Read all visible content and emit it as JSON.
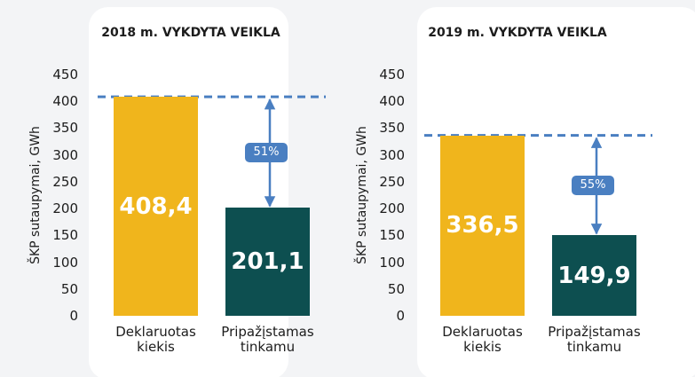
{
  "charts": [
    {
      "chart_data": {
        "type": "bar",
        "title": "2018 m. VYKDYTA VEIKLA",
        "y_label": "ŠKP sutaupymai, GWh",
        "categories": [
          "Deklaruotas kiekis",
          "Pripažįstamas tinkamu"
        ],
        "values": [
          408.4,
          201.1
        ],
        "value_labels": [
          "408,4",
          "201,1"
        ],
        "colors": [
          "#f0b51c",
          "#0d4f50"
        ],
        "annotation": "51%",
        "ylim": [
          0,
          450
        ],
        "yticks": [
          0,
          50,
          100,
          150,
          200,
          250,
          300,
          350,
          400,
          450
        ]
      }
    },
    {
      "chart_data": {
        "type": "bar",
        "title": "2019 m. VYKDYTA VEIKLA",
        "y_label": "ŠKP sutaupymai, GWh",
        "categories": [
          "Deklaruotas kiekis",
          "Pripažįstamas tinkamu"
        ],
        "values": [
          336.5,
          149.9
        ],
        "value_labels": [
          "336,5",
          "149,9"
        ],
        "colors": [
          "#f0b51c",
          "#0d4f50"
        ],
        "annotation": "55%",
        "ylim": [
          0,
          450
        ],
        "yticks": [
          0,
          50,
          100,
          150,
          200,
          250,
          300,
          350,
          400,
          450
        ]
      }
    }
  ]
}
